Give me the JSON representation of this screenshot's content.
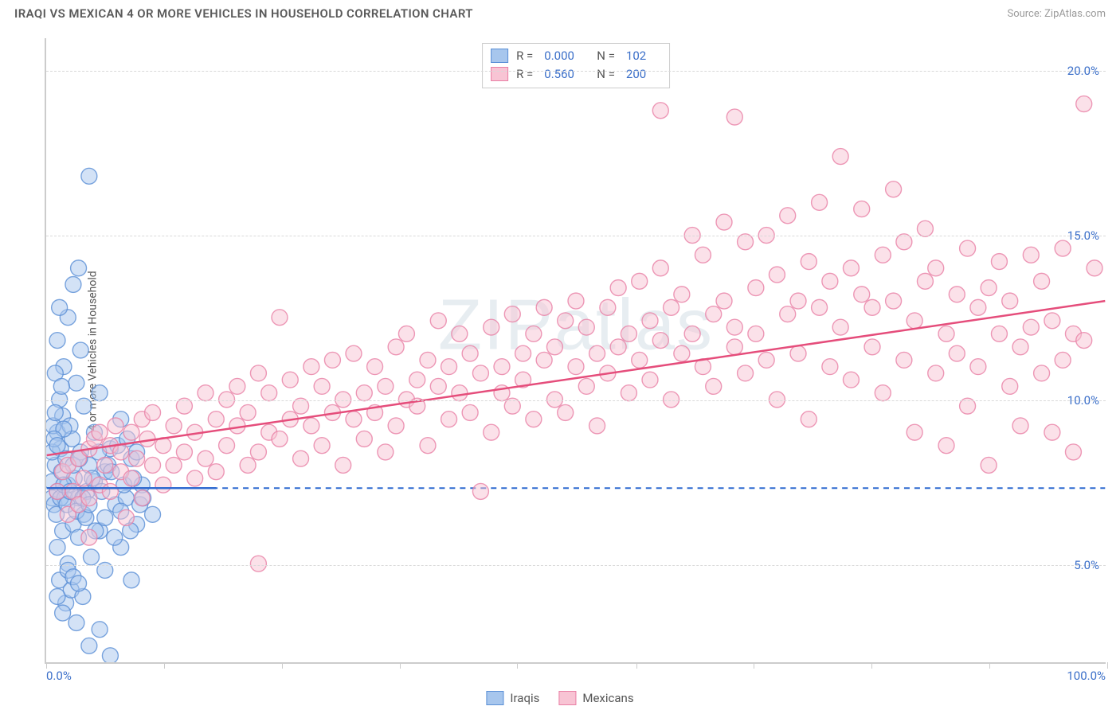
{
  "header": {
    "title": "IRAQI VS MEXICAN 4 OR MORE VEHICLES IN HOUSEHOLD CORRELATION CHART",
    "source": "Source: ZipAtlas.com"
  },
  "chart": {
    "type": "scatter",
    "ylabel": "4 or more Vehicles in Household",
    "watermark": "ZIPatlas",
    "xlim": [
      0,
      100
    ],
    "ylim": [
      2,
      21
    ],
    "x_ticks": [
      0,
      11.1,
      22.2,
      33.3,
      44.4,
      55.6,
      66.7,
      77.8,
      88.9,
      100
    ],
    "x_tick_labels": {
      "0": "0.0%",
      "100": "100.0%"
    },
    "y_gridlines": [
      5,
      10,
      15,
      20
    ],
    "y_tick_labels": {
      "5": "5.0%",
      "10": "10.0%",
      "15": "15.0%",
      "20": "20.0%"
    },
    "grid_color": "#d9d9d9",
    "axis_color": "#cccccc",
    "label_color": "#3b6fc9",
    "marker_radius": 10,
    "marker_opacity": 0.5,
    "marker_stroke_width": 1.4,
    "series": [
      {
        "name": "Iraqis",
        "fill": "#a7c6ed",
        "stroke": "#5a8fd6",
        "r": 0.0,
        "n": 102,
        "trend": {
          "x1": 0,
          "y1": 7.3,
          "x2": 16,
          "y2": 7.3,
          "color": "#2f6ad0",
          "width": 2.5
        },
        "dashed_ref": {
          "y": 7.3,
          "color": "#2f6ad0"
        },
        "points": [
          [
            0.5,
            7.0
          ],
          [
            0.5,
            7.5
          ],
          [
            0.7,
            6.8
          ],
          [
            0.8,
            8.0
          ],
          [
            0.9,
            6.5
          ],
          [
            1.0,
            7.2
          ],
          [
            1.0,
            9.0
          ],
          [
            1.0,
            5.5
          ],
          [
            1.2,
            10.0
          ],
          [
            1.2,
            4.5
          ],
          [
            1.3,
            8.5
          ],
          [
            1.4,
            7.8
          ],
          [
            1.5,
            6.0
          ],
          [
            1.5,
            9.5
          ],
          [
            1.6,
            11.0
          ],
          [
            1.7,
            7.0
          ],
          [
            1.8,
            3.8
          ],
          [
            1.8,
            8.2
          ],
          [
            2.0,
            12.5
          ],
          [
            2.0,
            5.0
          ],
          [
            2.0,
            7.4
          ],
          [
            2.2,
            9.2
          ],
          [
            2.3,
            4.2
          ],
          [
            2.4,
            8.8
          ],
          [
            2.5,
            6.2
          ],
          [
            2.5,
            13.5
          ],
          [
            2.6,
            7.6
          ],
          [
            2.8,
            10.5
          ],
          [
            2.8,
            3.2
          ],
          [
            3.0,
            14.0
          ],
          [
            3.0,
            7.0
          ],
          [
            3.0,
            5.8
          ],
          [
            3.2,
            8.4
          ],
          [
            3.2,
            11.5
          ],
          [
            3.4,
            4.0
          ],
          [
            3.5,
            9.8
          ],
          [
            3.5,
            6.5
          ],
          [
            3.8,
            7.2
          ],
          [
            4.0,
            16.8
          ],
          [
            4.0,
            8.0
          ],
          [
            4.0,
            2.5
          ],
          [
            4.2,
            5.2
          ],
          [
            4.5,
            9.0
          ],
          [
            4.5,
            7.5
          ],
          [
            5.0,
            6.0
          ],
          [
            5.0,
            3.0
          ],
          [
            5.0,
            10.2
          ],
          [
            5.5,
            4.8
          ],
          [
            5.5,
            7.8
          ],
          [
            6.0,
            8.5
          ],
          [
            6.0,
            2.2
          ],
          [
            6.5,
            6.8
          ],
          [
            7.0,
            5.5
          ],
          [
            7.0,
            9.4
          ],
          [
            7.5,
            7.0
          ],
          [
            8.0,
            4.5
          ],
          [
            8.0,
            8.2
          ],
          [
            8.5,
            6.2
          ],
          [
            9.0,
            7.4
          ],
          [
            10.0,
            6.5
          ],
          [
            1.0,
            4.0
          ],
          [
            1.5,
            3.5
          ],
          [
            2.0,
            4.8
          ],
          [
            2.5,
            4.6
          ],
          [
            3.0,
            4.4
          ],
          [
            0.8,
            10.8
          ],
          [
            1.0,
            11.8
          ],
          [
            1.2,
            12.8
          ],
          [
            0.6,
            9.2
          ],
          [
            0.8,
            9.6
          ],
          [
            1.4,
            10.4
          ],
          [
            1.6,
            9.1
          ],
          [
            0.5,
            8.4
          ],
          [
            0.7,
            8.8
          ],
          [
            1.0,
            8.6
          ],
          [
            1.3,
            7.0
          ],
          [
            1.6,
            7.4
          ],
          [
            1.9,
            6.8
          ],
          [
            2.2,
            7.2
          ],
          [
            2.5,
            8.0
          ],
          [
            2.8,
            6.6
          ],
          [
            3.1,
            8.2
          ],
          [
            3.4,
            7.0
          ],
          [
            3.7,
            6.4
          ],
          [
            4.0,
            6.8
          ],
          [
            4.3,
            7.6
          ],
          [
            4.6,
            6.0
          ],
          [
            4.9,
            8.4
          ],
          [
            5.2,
            7.2
          ],
          [
            5.5,
            6.4
          ],
          [
            5.8,
            8.0
          ],
          [
            6.1,
            7.8
          ],
          [
            6.4,
            5.8
          ],
          [
            6.7,
            8.6
          ],
          [
            7.0,
            6.6
          ],
          [
            7.3,
            7.4
          ],
          [
            7.6,
            8.8
          ],
          [
            7.9,
            6.0
          ],
          [
            8.2,
            7.6
          ],
          [
            8.5,
            8.4
          ],
          [
            8.8,
            6.8
          ],
          [
            9.1,
            7.0
          ]
        ]
      },
      {
        "name": "Mexicans",
        "fill": "#f8c4d4",
        "stroke": "#e97fa5",
        "r": 0.56,
        "n": 200,
        "trend": {
          "x1": 0,
          "y1": 8.3,
          "x2": 100,
          "y2": 13.0,
          "color": "#e54d7b",
          "width": 2.5
        },
        "points": [
          [
            1,
            7.2
          ],
          [
            1.5,
            7.8
          ],
          [
            2,
            6.5
          ],
          [
            2,
            8.0
          ],
          [
            2.5,
            7.2
          ],
          [
            3,
            8.2
          ],
          [
            3,
            6.8
          ],
          [
            3.5,
            7.6
          ],
          [
            4,
            8.5
          ],
          [
            4,
            7.0
          ],
          [
            4.5,
            8.8
          ],
          [
            5,
            7.4
          ],
          [
            5,
            9.0
          ],
          [
            5.5,
            8.0
          ],
          [
            6,
            7.2
          ],
          [
            6,
            8.6
          ],
          [
            6.5,
            9.2
          ],
          [
            7,
            7.8
          ],
          [
            7,
            8.4
          ],
          [
            7.5,
            6.4
          ],
          [
            8,
            9.0
          ],
          [
            8,
            7.6
          ],
          [
            8.5,
            8.2
          ],
          [
            9,
            9.4
          ],
          [
            9,
            7.0
          ],
          [
            9.5,
            8.8
          ],
          [
            10,
            8.0
          ],
          [
            10,
            9.6
          ],
          [
            11,
            7.4
          ],
          [
            11,
            8.6
          ],
          [
            12,
            9.2
          ],
          [
            12,
            8.0
          ],
          [
            13,
            9.8
          ],
          [
            13,
            8.4
          ],
          [
            14,
            7.6
          ],
          [
            14,
            9.0
          ],
          [
            15,
            10.2
          ],
          [
            15,
            8.2
          ],
          [
            16,
            9.4
          ],
          [
            16,
            7.8
          ],
          [
            17,
            10.0
          ],
          [
            17,
            8.6
          ],
          [
            18,
            9.2
          ],
          [
            18,
            10.4
          ],
          [
            19,
            8.0
          ],
          [
            19,
            9.6
          ],
          [
            20,
            10.8
          ],
          [
            20,
            8.4
          ],
          [
            21,
            9.0
          ],
          [
            21,
            10.2
          ],
          [
            22,
            12.5
          ],
          [
            22,
            8.8
          ],
          [
            23,
            9.4
          ],
          [
            23,
            10.6
          ],
          [
            24,
            8.2
          ],
          [
            24,
            9.8
          ],
          [
            20,
            5.0
          ],
          [
            25,
            11.0
          ],
          [
            25,
            9.2
          ],
          [
            26,
            10.4
          ],
          [
            26,
            8.6
          ],
          [
            27,
            9.6
          ],
          [
            27,
            11.2
          ],
          [
            28,
            8.0
          ],
          [
            28,
            10.0
          ],
          [
            29,
            9.4
          ],
          [
            29,
            11.4
          ],
          [
            30,
            10.2
          ],
          [
            30,
            8.8
          ],
          [
            31,
            9.6
          ],
          [
            31,
            11.0
          ],
          [
            32,
            10.4
          ],
          [
            32,
            8.4
          ],
          [
            33,
            11.6
          ],
          [
            33,
            9.2
          ],
          [
            34,
            10.0
          ],
          [
            34,
            12.0
          ],
          [
            35,
            9.8
          ],
          [
            35,
            10.6
          ],
          [
            36,
            11.2
          ],
          [
            36,
            8.6
          ],
          [
            37,
            10.4
          ],
          [
            37,
            12.4
          ],
          [
            38,
            9.4
          ],
          [
            38,
            11.0
          ],
          [
            39,
            10.2
          ],
          [
            39,
            12.0
          ],
          [
            40,
            9.6
          ],
          [
            40,
            11.4
          ],
          [
            41,
            10.8
          ],
          [
            41,
            7.2
          ],
          [
            42,
            12.2
          ],
          [
            42,
            9.0
          ],
          [
            43,
            11.0
          ],
          [
            43,
            10.2
          ],
          [
            44,
            12.6
          ],
          [
            44,
            9.8
          ],
          [
            45,
            11.4
          ],
          [
            45,
            10.6
          ],
          [
            46,
            12.0
          ],
          [
            46,
            9.4
          ],
          [
            47,
            11.2
          ],
          [
            47,
            12.8
          ],
          [
            48,
            10.0
          ],
          [
            48,
            11.6
          ],
          [
            49,
            12.4
          ],
          [
            49,
            9.6
          ],
          [
            50,
            11.0
          ],
          [
            50,
            13.0
          ],
          [
            51,
            10.4
          ],
          [
            51,
            12.2
          ],
          [
            52,
            11.4
          ],
          [
            52,
            9.2
          ],
          [
            53,
            12.8
          ],
          [
            53,
            10.8
          ],
          [
            54,
            11.6
          ],
          [
            54,
            13.4
          ],
          [
            55,
            10.2
          ],
          [
            55,
            12.0
          ],
          [
            56,
            11.2
          ],
          [
            56,
            13.6
          ],
          [
            57,
            10.6
          ],
          [
            57,
            12.4
          ],
          [
            58,
            11.8
          ],
          [
            58,
            14.0
          ],
          [
            59,
            10.0
          ],
          [
            59,
            12.8
          ],
          [
            60,
            11.4
          ],
          [
            60,
            13.2
          ],
          [
            61,
            15.0
          ],
          [
            61,
            12.0
          ],
          [
            62,
            11.0
          ],
          [
            62,
            14.4
          ],
          [
            63,
            12.6
          ],
          [
            63,
            10.4
          ],
          [
            64,
            13.0
          ],
          [
            64,
            15.4
          ],
          [
            65,
            11.6
          ],
          [
            65,
            12.2
          ],
          [
            66,
            14.8
          ],
          [
            66,
            10.8
          ],
          [
            67,
            13.4
          ],
          [
            67,
            12.0
          ],
          [
            68,
            15.0
          ],
          [
            68,
            11.2
          ],
          [
            69,
            13.8
          ],
          [
            69,
            10.0
          ],
          [
            70,
            12.6
          ],
          [
            70,
            15.6
          ],
          [
            71,
            11.4
          ],
          [
            71,
            13.0
          ],
          [
            72,
            14.2
          ],
          [
            72,
            9.4
          ],
          [
            73,
            12.8
          ],
          [
            73,
            16.0
          ],
          [
            74,
            11.0
          ],
          [
            74,
            13.6
          ],
          [
            75,
            12.2
          ],
          [
            75,
            17.4
          ],
          [
            76,
            14.0
          ],
          [
            76,
            10.6
          ],
          [
            77,
            13.2
          ],
          [
            77,
            15.8
          ],
          [
            78,
            11.6
          ],
          [
            78,
            12.8
          ],
          [
            79,
            14.4
          ],
          [
            79,
            10.2
          ],
          [
            80,
            13.0
          ],
          [
            80,
            16.4
          ],
          [
            81,
            11.2
          ],
          [
            81,
            14.8
          ],
          [
            82,
            12.4
          ],
          [
            82,
            9.0
          ],
          [
            83,
            13.6
          ],
          [
            83,
            15.2
          ],
          [
            84,
            10.8
          ],
          [
            84,
            14.0
          ],
          [
            85,
            12.0
          ],
          [
            85,
            8.6
          ],
          [
            86,
            13.2
          ],
          [
            86,
            11.4
          ],
          [
            87,
            14.6
          ],
          [
            87,
            9.8
          ],
          [
            88,
            12.8
          ],
          [
            88,
            11.0
          ],
          [
            89,
            13.4
          ],
          [
            89,
            8.0
          ],
          [
            90,
            12.0
          ],
          [
            90,
            14.2
          ],
          [
            91,
            10.4
          ],
          [
            91,
            13.0
          ],
          [
            92,
            11.6
          ],
          [
            92,
            9.2
          ],
          [
            93,
            14.4
          ],
          [
            93,
            12.2
          ],
          [
            94,
            10.8
          ],
          [
            94,
            13.6
          ],
          [
            95,
            9.0
          ],
          [
            95,
            12.4
          ],
          [
            96,
            14.6
          ],
          [
            96,
            11.2
          ],
          [
            97,
            8.4
          ],
          [
            97,
            12.0
          ],
          [
            98,
            11.8
          ],
          [
            98,
            19.0
          ],
          [
            58,
            18.8
          ],
          [
            65,
            18.6
          ],
          [
            99,
            14.0
          ],
          [
            4,
            5.8
          ]
        ]
      }
    ],
    "legend_bottom": [
      {
        "swatch_fill": "#a7c6ed",
        "swatch_stroke": "#5a8fd6",
        "label": "Iraqis"
      },
      {
        "swatch_fill": "#f8c4d4",
        "swatch_stroke": "#e97fa5",
        "label": "Mexicans"
      }
    ]
  }
}
